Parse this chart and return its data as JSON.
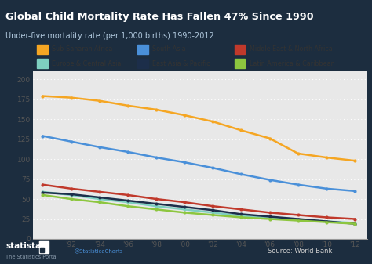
{
  "title": "Global Child Mortality Rate Has Fallen 47% Since 1990",
  "subtitle": "Under-five mortality rate (per 1,000 births) 1990-2012",
  "source": "Source: World Bank",
  "statista_text": "statista",
  "statista_sub": "The Statistics Portal",
  "statista_twitter": "@StatisticaCharts",
  "years": [
    1990,
    1992,
    1994,
    1996,
    1998,
    2000,
    2002,
    2004,
    2006,
    2008,
    2010,
    2012
  ],
  "xtick_labels": [
    "'90",
    "'92",
    "'94",
    "'96",
    "'98",
    "'00",
    "'02",
    "'04",
    "'06",
    "'08",
    "'10",
    "'12"
  ],
  "series": [
    {
      "name": "Sub-Saharan Africa",
      "color": "#F5A623",
      "values": [
        179,
        177,
        173,
        167,
        162,
        155,
        147,
        136,
        126,
        107,
        102,
        98
      ]
    },
    {
      "name": "South Asia",
      "color": "#4A90D9",
      "values": [
        129,
        122,
        115,
        109,
        102,
        96,
        89,
        81,
        74,
        68,
        63,
        60
      ]
    },
    {
      "name": "Middle East & North Africa",
      "color": "#C0392B",
      "values": [
        68,
        63,
        59,
        55,
        50,
        46,
        41,
        37,
        33,
        30,
        27,
        25
      ]
    },
    {
      "name": "Europe & Central Asia",
      "color": "#7ECFC0",
      "values": [
        59,
        55,
        50,
        46,
        41,
        37,
        33,
        29,
        26,
        24,
        22,
        20
      ]
    },
    {
      "name": "East Asia & Pacific",
      "color": "#1C2E4A",
      "values": [
        58,
        56,
        52,
        48,
        44,
        40,
        36,
        31,
        28,
        25,
        22,
        19
      ]
    },
    {
      "name": "Latin America & Caribbean",
      "color": "#8DC63F",
      "values": [
        55,
        50,
        46,
        41,
        37,
        33,
        30,
        27,
        25,
        23,
        21,
        19
      ]
    }
  ],
  "ylim": [
    0,
    210
  ],
  "yticks": [
    0,
    25,
    50,
    75,
    100,
    125,
    150,
    175,
    200
  ],
  "header_bg": "#1C2D3F",
  "title_color": "#FFFFFF",
  "subtitle_color": "#B0C8DD",
  "plot_bg": "#E8E8E8",
  "chart_bg": "#E8E8E8",
  "footer_bg": "#1C2D3F",
  "grid_color": "#FFFFFF",
  "grid_style": "dotted",
  "tick_label_color": "#555555",
  "line_width": 1.8,
  "marker_size": 3.0
}
